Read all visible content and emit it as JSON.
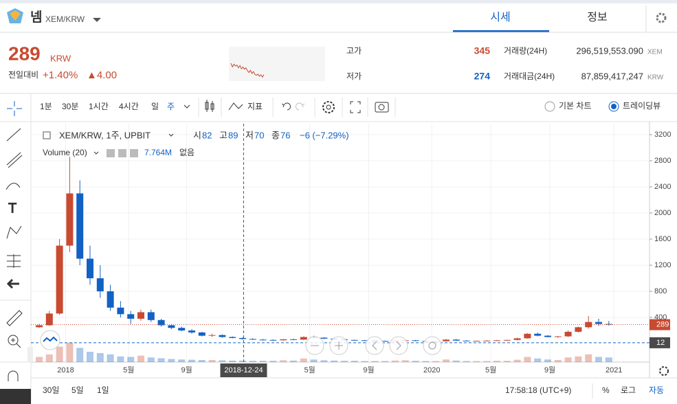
{
  "header": {
    "coin": "넴",
    "pair": "XEM/KRW",
    "tabs": [
      "시세",
      "정보"
    ]
  },
  "price": {
    "current": "289",
    "unit": "KRW",
    "change_label": "전일대비",
    "change_pct": "+1.40%",
    "change_abs": "▲4.00"
  },
  "stats": [
    {
      "label": "고가",
      "value": "345"
    },
    {
      "label": "저가",
      "value": "274"
    }
  ],
  "volume24": {
    "label": "거래량(24H)",
    "value": "296,519,553.090",
    "unit": "XEM"
  },
  "amount24": {
    "label": "거래대금(24H)",
    "value": "87,859,417,247",
    "unit": "KRW"
  },
  "sparkline": {
    "values": [
      350,
      330,
      345,
      335,
      340,
      325,
      338,
      320,
      330,
      318,
      325,
      310,
      300,
      312,
      295,
      305,
      290,
      285,
      292,
      280,
      288,
      275,
      289
    ],
    "lim": [
      265,
      365
    ],
    "color": "#c84a31"
  },
  "toolbar": {
    "intervals": [
      "1분",
      "30분",
      "1시간",
      "4시간",
      "일",
      "주"
    ],
    "indicator": "지표",
    "views": [
      "기본 차트",
      "트레이딩뷰"
    ]
  },
  "chart": {
    "symbol": "XEM/KRW, 1주, UPBIT",
    "ohlc": [
      {
        "label": "시",
        "value": "82"
      },
      {
        "label": "고",
        "value": "89"
      },
      {
        "label": "저",
        "value": "70"
      },
      {
        "label": "종",
        "value": "76"
      }
    ],
    "change": "−6 (−7.29%)",
    "volume_label": "Volume (20)",
    "volume_value": "7.764M",
    "volume_extra": "없음",
    "ylim": [
      -505,
      3368
    ],
    "yticks": [
      400,
      800,
      1200,
      1600,
      2000,
      2400,
      2800,
      3200
    ],
    "xticks": [
      {
        "value": 2.6,
        "label": "2018"
      },
      {
        "value": 8.8,
        "label": "5월"
      },
      {
        "value": 14.5,
        "label": "9월"
      },
      {
        "value": 26.6,
        "label": "5월"
      },
      {
        "value": 32.4,
        "label": "9월"
      },
      {
        "value": 38.6,
        "label": "2020"
      },
      {
        "value": 44.4,
        "label": "5월"
      },
      {
        "value": 50.2,
        "label": "9월"
      },
      {
        "value": 56.5,
        "label": "2021"
      }
    ],
    "crosshair": {
      "x": 20.1,
      "label": "2018-12-24",
      "price": 12
    },
    "last_price": 289,
    "up_color": "#c84a31",
    "down_color": "#1261c4",
    "candles": [
      [
        250,
        300,
        240,
        280
      ],
      [
        280,
        500,
        270,
        460
      ],
      [
        460,
        1600,
        440,
        1500
      ],
      [
        1500,
        2860,
        1400,
        2300
      ],
      [
        2300,
        2500,
        1200,
        1300
      ],
      [
        1300,
        1500,
        900,
        1000
      ],
      [
        1000,
        1200,
        700,
        800
      ],
      [
        800,
        900,
        500,
        550
      ],
      [
        550,
        650,
        400,
        450
      ],
      [
        450,
        500,
        300,
        380
      ],
      [
        380,
        520,
        350,
        480
      ],
      [
        480,
        520,
        330,
        360
      ],
      [
        360,
        380,
        260,
        280
      ],
      [
        280,
        300,
        220,
        240
      ],
      [
        240,
        260,
        190,
        200
      ],
      [
        200,
        220,
        150,
        170
      ],
      [
        170,
        180,
        110,
        120
      ],
      [
        120,
        150,
        100,
        130
      ],
      [
        130,
        140,
        90,
        100
      ],
      [
        100,
        110,
        80,
        85
      ],
      [
        85,
        95,
        60,
        70
      ],
      [
        70,
        80,
        55,
        60
      ],
      [
        60,
        70,
        50,
        55
      ],
      [
        55,
        65,
        45,
        50
      ],
      [
        50,
        70,
        45,
        65
      ],
      [
        65,
        75,
        55,
        60
      ],
      [
        60,
        110,
        55,
        100
      ],
      [
        100,
        120,
        80,
        90
      ],
      [
        90,
        95,
        70,
        75
      ],
      [
        75,
        80,
        60,
        65
      ],
      [
        65,
        70,
        50,
        55
      ],
      [
        55,
        60,
        45,
        50
      ],
      [
        50,
        55,
        40,
        45
      ],
      [
        45,
        50,
        35,
        40
      ],
      [
        40,
        45,
        30,
        35
      ],
      [
        35,
        50,
        30,
        45
      ],
      [
        45,
        60,
        40,
        50
      ],
      [
        50,
        55,
        35,
        40
      ],
      [
        40,
        45,
        25,
        30
      ],
      [
        30,
        40,
        25,
        35
      ],
      [
        35,
        70,
        30,
        60
      ],
      [
        60,
        70,
        40,
        45
      ],
      [
        45,
        50,
        35,
        40
      ],
      [
        40,
        45,
        35,
        42
      ],
      [
        42,
        50,
        38,
        45
      ],
      [
        45,
        55,
        40,
        50
      ],
      [
        50,
        60,
        45,
        55
      ],
      [
        55,
        90,
        50,
        80
      ],
      [
        80,
        160,
        75,
        150
      ],
      [
        150,
        170,
        110,
        120
      ],
      [
        120,
        130,
        95,
        100
      ],
      [
        100,
        115,
        90,
        110
      ],
      [
        110,
        200,
        100,
        180
      ],
      [
        180,
        260,
        170,
        250
      ],
      [
        250,
        420,
        230,
        330
      ],
      [
        330,
        380,
        270,
        300
      ],
      [
        300,
        345,
        274,
        289
      ]
    ],
    "volumes": [
      20,
      30,
      60,
      75,
      55,
      40,
      35,
      30,
      22,
      20,
      25,
      18,
      15,
      12,
      10,
      9,
      8,
      8,
      7,
      6,
      6,
      5,
      5,
      5,
      7,
      6,
      14,
      10,
      7,
      6,
      5,
      5,
      4,
      4,
      4,
      6,
      7,
      5,
      4,
      4,
      10,
      6,
      4,
      4,
      4,
      5,
      5,
      9,
      20,
      14,
      10,
      8,
      18,
      22,
      30,
      20,
      18
    ],
    "volume_lim": [
      0,
      80
    ]
  },
  "footer": {
    "ranges": [
      "30일",
      "5일",
      "1일"
    ],
    "time": "17:58:18 (UTC+9)",
    "options": [
      "%",
      "로그",
      "자동"
    ]
  }
}
